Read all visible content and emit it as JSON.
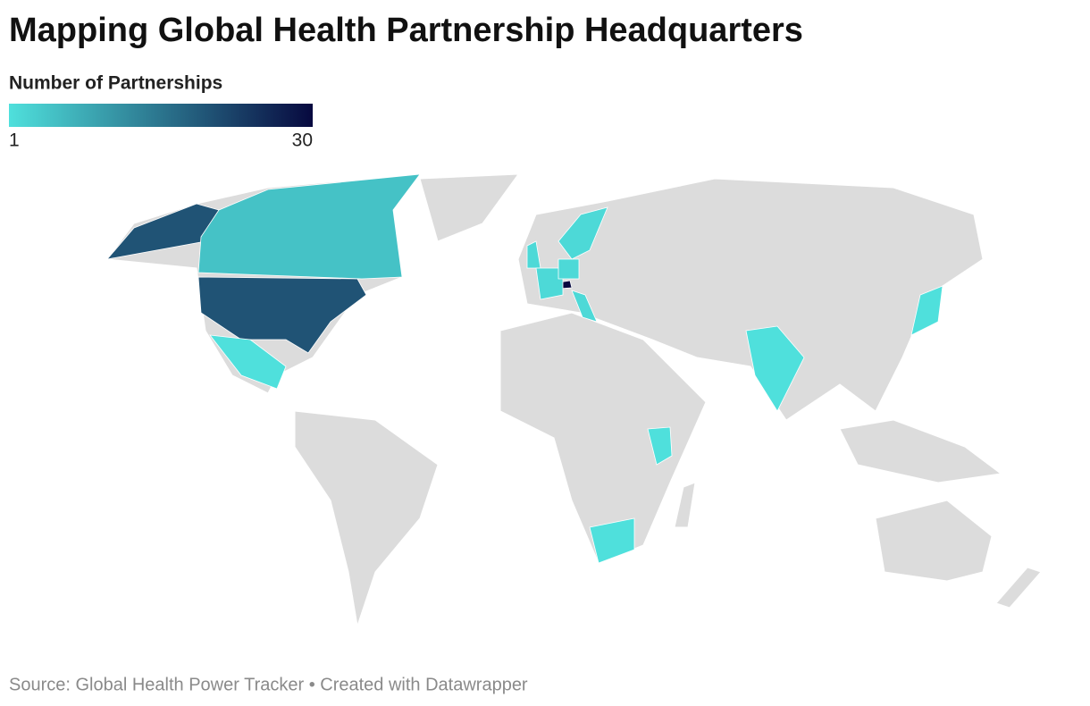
{
  "chart_data": {
    "type": "choropleth",
    "title": "Mapping Global Health Partnership Headquarters",
    "legend_title": "Number of Partnerships",
    "legend_min": 1,
    "legend_max": 30,
    "color_low": "#4fe0dc",
    "color_high": "#07093f",
    "values": [
      20,
      5,
      1,
      30,
      2,
      2,
      2,
      2,
      2,
      1,
      1,
      1,
      1
    ],
    "source": "Source: Global Health Power Tracker • Created with Datawrapper"
  }
}
